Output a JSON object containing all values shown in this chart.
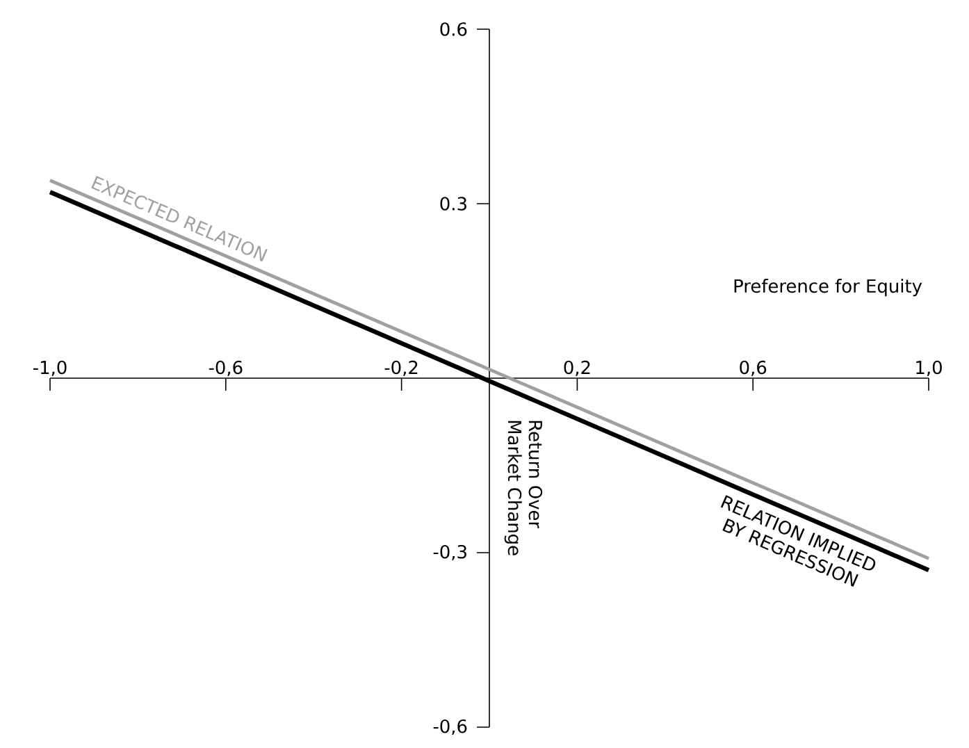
{
  "chart_data": {
    "type": "line",
    "xlabel": "Preference for Equity",
    "ylabel": "Return Over Market Change",
    "x": [
      -1.0,
      1.0
    ],
    "series": [
      {
        "name": "EXPECTED RELATION",
        "color": "#a0a0a0",
        "values": [
          0.34,
          -0.31
        ]
      },
      {
        "name": "RELATION IMPLIED BY REGRESSION",
        "color": "#000000",
        "values": [
          0.32,
          -0.33
        ]
      }
    ],
    "xlim": [
      -1.0,
      1.0
    ],
    "ylim": [
      -0.6,
      0.6
    ],
    "xticks": [
      {
        "value": -1.0,
        "label": "-1,0"
      },
      {
        "value": -0.6,
        "label": "-0,6"
      },
      {
        "value": -0.2,
        "label": "-0,2"
      },
      {
        "value": 0.2,
        "label": "0,2"
      },
      {
        "value": 0.6,
        "label": "0,6"
      },
      {
        "value": 1.0,
        "label": "1,0"
      }
    ],
    "yticks": [
      0.6,
      0.3,
      {
        "value": -0.3,
        "label": "-0,3"
      },
      {
        "value": -0.6,
        "label": "-0,6"
      }
    ],
    "grid": false,
    "legend": false,
    "marker": "none",
    "line_style": "solid"
  }
}
